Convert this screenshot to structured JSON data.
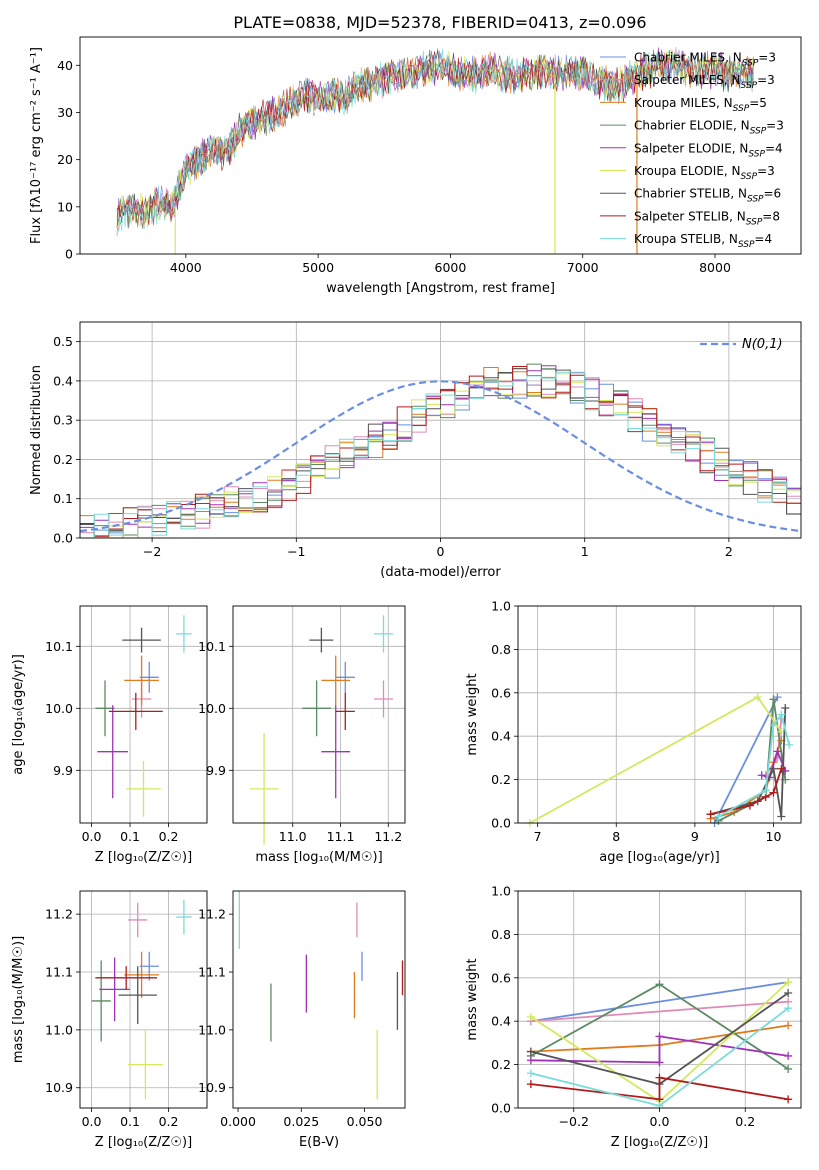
{
  "title": "PLATE=0838, MJD=52378, FIBERID=0413, z=0.096",
  "colors": {
    "Chabrier MILES": "#6a8fe0",
    "Salpeter MILES": "#e08cb8",
    "Kroupa MILES": "#e07b1e",
    "Chabrier ELODIE": "#5c8a64",
    "Salpeter ELODIE": "#a032b8",
    "Kroupa ELODIE": "#d4e85a",
    "Chabrier STELIB": "#555555",
    "Salpeter STELIB": "#b01c1c",
    "Kroupa STELIB": "#7adcd8"
  },
  "chart_data": [
    {
      "type": "line",
      "title": "PLATE=0838, MJD=52378, FIBERID=0413, z=0.096",
      "xlabel": "wavelength [Angstrom, rest frame]",
      "ylabel": "Flux [f_λ 10^-17 erg cm^-2 s^-1 A^-1]",
      "xlim": [
        3200,
        8650
      ],
      "ylim": [
        0,
        46
      ],
      "xticks": [
        "4000",
        "5000",
        "6000",
        "7000",
        "8000"
      ],
      "yticks": [
        "0",
        "10",
        "20",
        "30",
        "40"
      ],
      "legend_position": "top-right",
      "continuum_wavelength": [
        3480,
        3600,
        3700,
        3800,
        3900,
        3950,
        4000,
        4100,
        4200,
        4300,
        4400,
        4500,
        4600,
        4700,
        4800,
        4900,
        5000,
        5100,
        5200,
        5300,
        5400,
        5500,
        5600,
        5700,
        5800,
        5900,
        6000,
        6100,
        6200,
        6300,
        6400,
        6500,
        6600,
        6700,
        6800,
        6900,
        7000,
        7100,
        7200,
        7300,
        7400,
        7500,
        7600,
        7700,
        7800,
        7900,
        8000,
        8100,
        8200,
        8300
      ],
      "continuum_flux": [
        8,
        10,
        9,
        11,
        10,
        14,
        18,
        20,
        22,
        21,
        26,
        28,
        29,
        30,
        32,
        34,
        33,
        34,
        33,
        36,
        36,
        37,
        38,
        38,
        39,
        40,
        39,
        38,
        38,
        39,
        38,
        38,
        38,
        39,
        38,
        39,
        38,
        37,
        36,
        36,
        38,
        39,
        40,
        40,
        39,
        39,
        39,
        38,
        39,
        38
      ],
      "series": [
        {
          "name": "Chabrier MILES, N_SSP=3"
        },
        {
          "name": "Salpeter MILES, N_SSP=3"
        },
        {
          "name": "Kroupa MILES, N_SSP=5"
        },
        {
          "name": "Chabrier ELODIE, N_SSP=3"
        },
        {
          "name": "Salpeter ELODIE, N_SSP=4"
        },
        {
          "name": "Kroupa ELODIE, N_SSP=3"
        },
        {
          "name": "Chabrier STELIB, N_SSP=6"
        },
        {
          "name": "Salpeter STELIB, N_SSP=8"
        },
        {
          "name": "Kroupa STELIB, N_SSP=4"
        }
      ],
      "legend_labels": [
        {
          "base": "Chabrier MILES, N",
          "sub": "SSP",
          "val": "=3"
        },
        {
          "base": "Salpeter MILES, N",
          "sub": "SSP",
          "val": "=3"
        },
        {
          "base": "Kroupa MILES, N",
          "sub": "SSP",
          "val": "=5"
        },
        {
          "base": "Chabrier ELODIE, N",
          "sub": "SSP",
          "val": "=3"
        },
        {
          "base": "Salpeter ELODIE, N",
          "sub": "SSP",
          "val": "=4"
        },
        {
          "base": "Kroupa ELODIE, N",
          "sub": "SSP",
          "val": "=3"
        },
        {
          "base": "Chabrier STELIB, N",
          "sub": "SSP",
          "val": "=6"
        },
        {
          "base": "Salpeter STELIB, N",
          "sub": "SSP",
          "val": "=8"
        },
        {
          "base": "Kroupa STELIB, N",
          "sub": "SSP",
          "val": "=4"
        }
      ]
    },
    {
      "type": "histogram",
      "xlabel": "(data-model)/error",
      "ylabel": "Normed distribution",
      "xlim": [
        -2.5,
        2.5
      ],
      "ylim": [
        0,
        0.55
      ],
      "xticks": [
        -2,
        -1,
        0,
        1,
        2
      ],
      "yticks": [
        0.0,
        0.1,
        0.2,
        0.3,
        0.4,
        0.5
      ],
      "grid": true,
      "legend_position": "top-right",
      "bin_width": 0.1,
      "bin_start": -2.5,
      "base_histogram": [
        0.02,
        0.025,
        0.03,
        0.035,
        0.04,
        0.045,
        0.05,
        0.06,
        0.07,
        0.08,
        0.09,
        0.1,
        0.11,
        0.12,
        0.14,
        0.15,
        0.17,
        0.19,
        0.21,
        0.23,
        0.25,
        0.27,
        0.29,
        0.31,
        0.33,
        0.35,
        0.37,
        0.385,
        0.39,
        0.4,
        0.4,
        0.4,
        0.395,
        0.39,
        0.38,
        0.37,
        0.35,
        0.33,
        0.31,
        0.29,
        0.27,
        0.25,
        0.23,
        0.21,
        0.19,
        0.17,
        0.15,
        0.13,
        0.11,
        0.1
      ],
      "reference_curve": {
        "name": "N(0,1)",
        "type": "normal",
        "mean": 0,
        "sigma": 1
      },
      "series": [
        {
          "name": "Chabrier MILES"
        },
        {
          "name": "Salpeter MILES"
        },
        {
          "name": "Kroupa MILES"
        },
        {
          "name": "Chabrier ELODIE"
        },
        {
          "name": "Salpeter ELODIE"
        },
        {
          "name": "Kroupa ELODIE"
        },
        {
          "name": "Chabrier STELIB"
        },
        {
          "name": "Salpeter STELIB"
        },
        {
          "name": "Kroupa STELIB"
        }
      ]
    },
    {
      "type": "scatter",
      "xlabel": "Z [log10(Z/Z☉)]",
      "ylabel": "age [log10(age/yr)]",
      "xlim": [
        -0.03,
        0.3
      ],
      "ylim": [
        9.815,
        10.165
      ],
      "xticks": [
        0.0,
        0.1,
        0.2
      ],
      "yticks": [
        9.9,
        10.0,
        10.1
      ],
      "grid": true,
      "points": [
        {
          "series": "Chabrier MILES",
          "x": 0.15,
          "y": 10.05,
          "xerr": 0.025,
          "yerr": 0.025
        },
        {
          "series": "Salpeter MILES",
          "x": 0.13,
          "y": 10.015,
          "xerr": 0.025,
          "yerr": 0.03
        },
        {
          "series": "Kroupa MILES",
          "x": 0.13,
          "y": 10.045,
          "xerr": 0.045,
          "yerr": 0.04
        },
        {
          "series": "Chabrier ELODIE",
          "x": 0.035,
          "y": 10.0,
          "xerr": 0.025,
          "yerr": 0.045
        },
        {
          "series": "Salpeter ELODIE",
          "x": 0.055,
          "y": 9.93,
          "xerr": 0.04,
          "yerr": 0.075
        },
        {
          "series": "Kroupa ELODIE",
          "x": 0.135,
          "y": 9.87,
          "xerr": 0.045,
          "yerr": 0.045
        },
        {
          "series": "Chabrier STELIB",
          "x": 0.13,
          "y": 10.11,
          "xerr": 0.05,
          "yerr": 0.02
        },
        {
          "series": "Salpeter STELIB",
          "x": 0.115,
          "y": 9.995,
          "xerr": 0.07,
          "yerr": 0.03
        },
        {
          "series": "Kroupa STELIB",
          "x": 0.24,
          "y": 10.12,
          "xerr": 0.02,
          "yerr": 0.03
        }
      ]
    },
    {
      "type": "scatter",
      "xlabel": "mass [log10(M/M☉)]",
      "ylabel": "",
      "xlim": [
        10.875,
        11.235
      ],
      "ylim": [
        9.815,
        10.165
      ],
      "xticks": [
        11.0,
        11.1,
        11.2
      ],
      "yticks": [
        9.9,
        10.0,
        10.1
      ],
      "grid": true,
      "points": [
        {
          "series": "Chabrier MILES",
          "x": 11.11,
          "y": 10.05,
          "xerr": 0.02,
          "yerr": 0.025
        },
        {
          "series": "Salpeter MILES",
          "x": 11.19,
          "y": 10.015,
          "xerr": 0.02,
          "yerr": 0.03
        },
        {
          "series": "Kroupa MILES",
          "x": 11.09,
          "y": 10.045,
          "xerr": 0.03,
          "yerr": 0.04
        },
        {
          "series": "Chabrier ELODIE",
          "x": 11.05,
          "y": 10.0,
          "xerr": 0.03,
          "yerr": 0.045
        },
        {
          "series": "Salpeter ELODIE",
          "x": 11.09,
          "y": 9.93,
          "xerr": 0.03,
          "yerr": 0.075
        },
        {
          "series": "Kroupa ELODIE",
          "x": 10.94,
          "y": 9.87,
          "xerr": 0.03,
          "yerr": 0.09
        },
        {
          "series": "Chabrier STELIB",
          "x": 11.06,
          "y": 10.11,
          "xerr": 0.025,
          "yerr": 0.02
        },
        {
          "series": "Salpeter STELIB",
          "x": 11.11,
          "y": 9.995,
          "xerr": 0.02,
          "yerr": 0.03
        },
        {
          "series": "Kroupa STELIB",
          "x": 11.19,
          "y": 10.12,
          "xerr": 0.02,
          "yerr": 0.03
        }
      ]
    },
    {
      "type": "line",
      "xlabel": "age [log10(age/yr)]",
      "ylabel": "mass weight",
      "xlim": [
        6.75,
        10.35
      ],
      "ylim": [
        0,
        1
      ],
      "xticks": [
        7,
        8,
        9,
        10
      ],
      "yticks": [
        0.0,
        0.2,
        0.4,
        0.6,
        0.8,
        1.0
      ],
      "grid": true,
      "series": [
        {
          "name": "Chabrier MILES",
          "x": [
            9.25,
            10.05
          ],
          "y": [
            0.0,
            0.58
          ]
        },
        {
          "name": "Salpeter MILES",
          "x": [
            9.9,
            10.05,
            10.1
          ],
          "y": [
            0.22,
            0.3,
            0.48
          ]
        },
        {
          "name": "Kroupa MILES",
          "x": [
            9.2,
            9.5,
            9.9,
            10.0,
            10.1
          ],
          "y": [
            0.02,
            0.05,
            0.15,
            0.28,
            0.38
          ]
        },
        {
          "name": "Chabrier ELODIE",
          "x": [
            9.3,
            9.9,
            10.0,
            10.15
          ],
          "y": [
            0.01,
            0.12,
            0.57,
            0.2
          ]
        },
        {
          "name": "Salpeter ELODIE",
          "x": [
            9.85,
            9.95,
            10.05,
            10.15
          ],
          "y": [
            0.22,
            0.21,
            0.33,
            0.24
          ]
        },
        {
          "name": "Kroupa ELODIE",
          "x": [
            6.9,
            9.8,
            10.1
          ],
          "y": [
            0.0,
            0.58,
            0.42
          ]
        },
        {
          "name": "Chabrier STELIB",
          "x": [
            9.2,
            9.8,
            10.0,
            10.1,
            10.15
          ],
          "y": [
            0.04,
            0.1,
            0.25,
            0.03,
            0.53
          ]
        },
        {
          "name": "Salpeter STELIB",
          "x": [
            9.2,
            9.7,
            9.9,
            10.0,
            10.1
          ],
          "y": [
            0.04,
            0.08,
            0.12,
            0.14,
            0.25
          ]
        },
        {
          "name": "Kroupa STELIB",
          "x": [
            9.3,
            9.9,
            10.0,
            10.1,
            10.2
          ],
          "y": [
            0.03,
            0.15,
            0.45,
            0.5,
            0.36
          ]
        }
      ]
    },
    {
      "type": "scatter",
      "xlabel": "Z [log10(Z/Z☉)]",
      "ylabel": "mass [log10(M/M☉)]",
      "xlim": [
        -0.03,
        0.3
      ],
      "ylim": [
        10.865,
        11.24
      ],
      "xticks": [
        0.0,
        0.1,
        0.2
      ],
      "yticks": [
        10.9,
        11.0,
        11.1,
        11.2
      ],
      "grid": true,
      "points": [
        {
          "series": "Chabrier MILES",
          "x": 0.15,
          "y": 11.11,
          "xerr": 0.025,
          "yerr": 0.025
        },
        {
          "series": "Salpeter MILES",
          "x": 0.12,
          "y": 11.19,
          "xerr": 0.025,
          "yerr": 0.03
        },
        {
          "series": "Kroupa MILES",
          "x": 0.13,
          "y": 11.095,
          "xerr": 0.045,
          "yerr": 0.04
        },
        {
          "series": "Chabrier ELODIE",
          "x": 0.025,
          "y": 11.05,
          "xerr": 0.025,
          "yerr": 0.07
        },
        {
          "series": "Salpeter ELODIE",
          "x": 0.06,
          "y": 11.07,
          "xerr": 0.04,
          "yerr": 0.055
        },
        {
          "series": "Kroupa ELODIE",
          "x": 0.14,
          "y": 10.94,
          "xerr": 0.045,
          "yerr": 0.06
        },
        {
          "series": "Chabrier STELIB",
          "x": 0.12,
          "y": 11.06,
          "xerr": 0.05,
          "yerr": 0.05
        },
        {
          "series": "Salpeter STELIB",
          "x": 0.09,
          "y": 11.09,
          "xerr": 0.08,
          "yerr": 0.02
        },
        {
          "series": "Kroupa STELIB",
          "x": 0.24,
          "y": 11.195,
          "xerr": 0.02,
          "yerr": 0.03
        }
      ]
    },
    {
      "type": "scatter",
      "xlabel": "E(B-V)",
      "ylabel": "",
      "xlim": [
        -0.002,
        0.066
      ],
      "ylim": [
        10.865,
        11.24
      ],
      "xticks": [
        0.0,
        0.025,
        0.05
      ],
      "xtick_labels": [
        "0.000",
        "0.025",
        "0.050"
      ],
      "yticks": [
        10.9,
        11.0,
        11.1,
        11.2
      ],
      "grid": false,
      "points": [
        {
          "series": "Chabrier MILES",
          "x": 0.049,
          "y": 11.11,
          "yerr": 0.025
        },
        {
          "series": "Salpeter MILES",
          "x": 0.047,
          "y": 11.19,
          "yerr": 0.03
        },
        {
          "series": "Kroupa MILES",
          "x": 0.046,
          "y": 11.06,
          "yerr": 0.04
        },
        {
          "series": "Chabrier ELODIE",
          "x": 0.013,
          "y": 11.03,
          "yerr": 0.05
        },
        {
          "series": "Salpeter ELODIE",
          "x": 0.027,
          "y": 11.08,
          "yerr": 0.05
        },
        {
          "series": "Kroupa ELODIE",
          "x": 0.055,
          "y": 10.94,
          "yerr": 0.06
        },
        {
          "series": "Chabrier STELIB",
          "x": 0.063,
          "y": 11.05,
          "yerr": 0.05
        },
        {
          "series": "Salpeter STELIB",
          "x": 0.065,
          "y": 11.09,
          "yerr": 0.03
        },
        {
          "series": "Kroupa STELIB",
          "x": 0.0005,
          "y": 11.19,
          "yerr": 0.05
        }
      ]
    },
    {
      "type": "line",
      "xlabel": "Z [log10(Z/Z☉)]",
      "ylabel": "mass weight",
      "xlim": [
        -0.33,
        0.33
      ],
      "ylim": [
        0,
        1
      ],
      "xticks": [
        -0.2,
        0.0,
        0.2
      ],
      "yticks": [
        0.0,
        0.2,
        0.4,
        0.6,
        0.8,
        1.0
      ],
      "grid": true,
      "series": [
        {
          "name": "Chabrier MILES",
          "x": [
            -0.3,
            0.3
          ],
          "y": [
            0.4,
            0.58
          ]
        },
        {
          "name": "Salpeter MILES",
          "x": [
            -0.3,
            0.3
          ],
          "y": [
            0.4,
            0.49
          ]
        },
        {
          "name": "Kroupa MILES",
          "x": [
            -0.3,
            0.0,
            0.3
          ],
          "y": [
            0.26,
            0.29,
            0.38
          ]
        },
        {
          "name": "Chabrier ELODIE",
          "x": [
            -0.3,
            0.0,
            0.3
          ],
          "y": [
            0.24,
            0.57,
            0.18
          ]
        },
        {
          "name": "Salpeter ELODIE",
          "x": [
            -0.3,
            0.0,
            0.0,
            0.3
          ],
          "y": [
            0.22,
            0.21,
            0.33,
            0.24
          ]
        },
        {
          "name": "Kroupa ELODIE",
          "x": [
            -0.3,
            0.0,
            0.3
          ],
          "y": [
            0.42,
            0.03,
            0.58
          ]
        },
        {
          "name": "Chabrier STELIB",
          "x": [
            -0.3,
            0.0,
            0.3
          ],
          "y": [
            0.26,
            0.11,
            0.53
          ]
        },
        {
          "name": "Salpeter STELIB",
          "x": [
            -0.3,
            0.0,
            0.0,
            0.3
          ],
          "y": [
            0.11,
            0.04,
            0.14,
            0.04
          ]
        },
        {
          "name": "Kroupa STELIB",
          "x": [
            -0.3,
            0.0,
            0.3
          ],
          "y": [
            0.16,
            0.01,
            0.46
          ]
        }
      ]
    }
  ]
}
